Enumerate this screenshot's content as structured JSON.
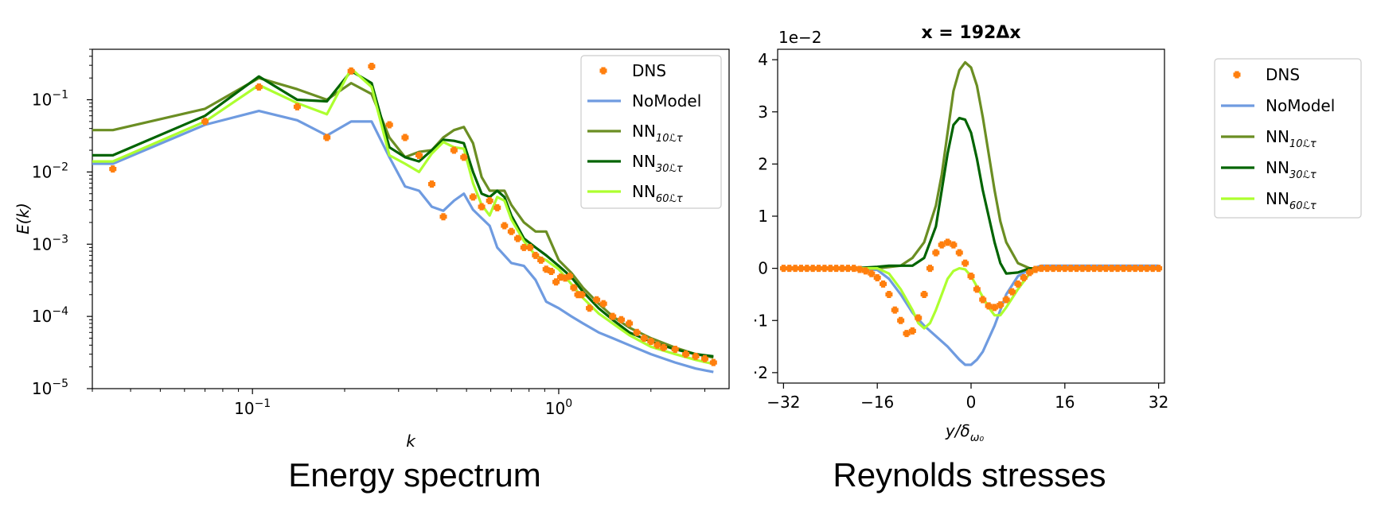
{
  "captions": {
    "left": "Energy spectrum",
    "right": "Reynolds stresses"
  },
  "legend_labels": [
    {
      "main": "DNS",
      "sub": ""
    },
    {
      "main": "NoModel",
      "sub": ""
    },
    {
      "main": "NN",
      "sub": "10ℒτ"
    },
    {
      "main": "NN",
      "sub": "30ℒτ"
    },
    {
      "main": "NN",
      "sub": "60ℒτ"
    }
  ],
  "colors": {
    "DNS": "#ff7f0e",
    "NoModel": "#6f9be0",
    "NN10": "#6b8e23",
    "NN30": "#006400",
    "NN60": "#adff2f"
  },
  "chart_data": [
    {
      "type": "line",
      "title": "",
      "xlabel": "k",
      "ylabel": "E(k)",
      "xscale": "log",
      "yscale": "log",
      "xlim": [
        0.03,
        3.6
      ],
      "ylim": [
        1e-05,
        0.5
      ],
      "xticks": [
        {
          "value": 0.1,
          "base": "10",
          "exp": "−1"
        },
        {
          "value": 1,
          "base": "10",
          "exp": "0"
        }
      ],
      "yticks": [
        {
          "value": 0.1,
          "base": "10",
          "exp": "−1"
        },
        {
          "value": 0.01,
          "base": "10",
          "exp": "−2"
        },
        {
          "value": 0.001,
          "base": "10",
          "exp": "−3"
        },
        {
          "value": 0.0001,
          "base": "10",
          "exp": "−4"
        },
        {
          "value": 1e-05,
          "base": "10",
          "exp": "−5"
        }
      ],
      "legend": "top-right",
      "series": [
        {
          "key": "DNS",
          "name": "DNS",
          "kind": "marker",
          "x": [
            0.035,
            0.07,
            0.105,
            0.14,
            0.175,
            0.21,
            0.245,
            0.28,
            0.315,
            0.35,
            0.385,
            0.42,
            0.455,
            0.49,
            0.525,
            0.56,
            0.595,
            0.63,
            0.665,
            0.7,
            0.735,
            0.77,
            0.805,
            0.84,
            0.875,
            0.91,
            0.945,
            0.98,
            1.015,
            1.05,
            1.085,
            1.12,
            1.155,
            1.19,
            1.26,
            1.33,
            1.4,
            1.5,
            1.6,
            1.7,
            1.8,
            1.9,
            2.0,
            2.1,
            2.2,
            2.4,
            2.6,
            2.8,
            3.0,
            3.2
          ],
          "y": [
            0.011,
            0.05,
            0.15,
            0.08,
            0.03,
            0.25,
            0.29,
            0.045,
            0.03,
            0.017,
            0.0068,
            0.0024,
            0.02,
            0.016,
            0.0045,
            0.0033,
            0.004,
            0.0032,
            0.0018,
            0.0015,
            0.0012,
            0.0009,
            0.0009,
            0.0007,
            0.0006,
            0.00045,
            0.00042,
            0.0003,
            0.00035,
            0.00034,
            0.00036,
            0.00025,
            0.0002,
            0.0002,
            0.00013,
            0.00017,
            0.00015,
            0.0001,
            9e-05,
            8e-05,
            6e-05,
            5e-05,
            4.5e-05,
            4e-05,
            3.7e-05,
            3.5e-05,
            3e-05,
            2.8e-05,
            2.6e-05,
            2.3e-05
          ]
        },
        {
          "key": "NoModel",
          "name": "NoModel",
          "kind": "line",
          "x": [
            0.03,
            0.035,
            0.07,
            0.105,
            0.14,
            0.175,
            0.21,
            0.245,
            0.28,
            0.315,
            0.35,
            0.385,
            0.42,
            0.455,
            0.49,
            0.525,
            0.56,
            0.595,
            0.63,
            0.7,
            0.77,
            0.84,
            0.91,
            1.0,
            1.1,
            1.2,
            1.35,
            1.5,
            1.7,
            2.0,
            2.4,
            2.8,
            3.2
          ],
          "y": [
            0.013,
            0.013,
            0.045,
            0.07,
            0.052,
            0.032,
            0.05,
            0.05,
            0.016,
            0.0063,
            0.0055,
            0.0033,
            0.0029,
            0.004,
            0.005,
            0.003,
            0.0023,
            0.0018,
            0.0009,
            0.00055,
            0.0005,
            0.00032,
            0.00016,
            0.00013,
            0.0001,
            8e-05,
            6e-05,
            5e-05,
            4e-05,
            3e-05,
            2.3e-05,
            1.9e-05,
            1.7e-05
          ]
        },
        {
          "key": "NN10",
          "name": "NN10",
          "kind": "line",
          "x": [
            0.03,
            0.035,
            0.07,
            0.105,
            0.14,
            0.175,
            0.21,
            0.245,
            0.28,
            0.315,
            0.35,
            0.385,
            0.42,
            0.455,
            0.49,
            0.525,
            0.56,
            0.595,
            0.63,
            0.665,
            0.7,
            0.77,
            0.84,
            0.91,
            1.0,
            1.1,
            1.2,
            1.35,
            1.5,
            1.7,
            2.0,
            2.4,
            2.8,
            3.2
          ],
          "y": [
            0.038,
            0.038,
            0.075,
            0.2,
            0.14,
            0.1,
            0.17,
            0.12,
            0.03,
            0.016,
            0.019,
            0.02,
            0.03,
            0.038,
            0.042,
            0.025,
            0.0085,
            0.0055,
            0.0055,
            0.0055,
            0.0035,
            0.002,
            0.0015,
            0.0015,
            0.0006,
            0.0004,
            0.00025,
            0.00015,
            0.0001,
            7e-05,
            5e-05,
            3.7e-05,
            3e-05,
            2.7e-05
          ]
        },
        {
          "key": "NN30",
          "name": "NN30",
          "kind": "line",
          "x": [
            0.03,
            0.035,
            0.07,
            0.105,
            0.14,
            0.175,
            0.21,
            0.245,
            0.28,
            0.315,
            0.35,
            0.385,
            0.42,
            0.455,
            0.49,
            0.525,
            0.56,
            0.595,
            0.63,
            0.665,
            0.7,
            0.77,
            0.84,
            0.91,
            1.0,
            1.1,
            1.2,
            1.35,
            1.5,
            1.7,
            2.0,
            2.4,
            2.8,
            3.2
          ],
          "y": [
            0.017,
            0.017,
            0.06,
            0.21,
            0.1,
            0.095,
            0.25,
            0.17,
            0.022,
            0.016,
            0.014,
            0.02,
            0.028,
            0.027,
            0.025,
            0.01,
            0.005,
            0.0045,
            0.0055,
            0.0045,
            0.0025,
            0.0012,
            0.0009,
            0.0007,
            0.0005,
            0.00035,
            0.00022,
            0.00013,
            9e-05,
            6e-05,
            4.5e-05,
            3.5e-05,
            3e-05,
            2.8e-05
          ]
        },
        {
          "key": "NN60",
          "name": "NN60",
          "kind": "line",
          "x": [
            0.03,
            0.035,
            0.07,
            0.105,
            0.14,
            0.175,
            0.21,
            0.245,
            0.28,
            0.315,
            0.35,
            0.385,
            0.42,
            0.455,
            0.49,
            0.525,
            0.56,
            0.595,
            0.63,
            0.665,
            0.7,
            0.77,
            0.84,
            0.91,
            1.0,
            1.1,
            1.2,
            1.35,
            1.5,
            1.7,
            2.0,
            2.4,
            2.8,
            3.2
          ],
          "y": [
            0.014,
            0.014,
            0.05,
            0.16,
            0.09,
            0.063,
            0.27,
            0.15,
            0.017,
            0.013,
            0.01,
            0.018,
            0.026,
            0.022,
            0.021,
            0.007,
            0.0035,
            0.0025,
            0.0045,
            0.004,
            0.0022,
            0.0011,
            0.0007,
            0.0006,
            0.00045,
            0.00028,
            0.00018,
            0.00011,
            8e-05,
            5.5e-05,
            3.8e-05,
            3e-05,
            2.5e-05,
            2.2e-05
          ]
        }
      ]
    },
    {
      "type": "line",
      "title": "x = 192Δx",
      "xlabel": "y/δ",
      "xlabel_sub": "ω₀",
      "ylabel": "",
      "scale_note": "1e−2",
      "xlim": [
        -33,
        33
      ],
      "ylim": [
        -2.2,
        4.2
      ],
      "xticks": [
        {
          "value": -32,
          "label": "−32"
        },
        {
          "value": -16,
          "label": "−16"
        },
        {
          "value": 0,
          "label": "0"
        },
        {
          "value": 16,
          "label": "16"
        },
        {
          "value": 32,
          "label": "32"
        }
      ],
      "yticks": [
        {
          "value": 4,
          "label": "4"
        },
        {
          "value": 3,
          "label": "3"
        },
        {
          "value": 2,
          "label": "2"
        },
        {
          "value": 1,
          "label": "1"
        },
        {
          "value": 0,
          "label": "0"
        },
        {
          "value": -1,
          "label": "·1"
        },
        {
          "value": -2,
          "label": "·2"
        }
      ],
      "legend": "outside-right",
      "series": [
        {
          "key": "DNS",
          "name": "DNS",
          "kind": "marker",
          "x": [
            -32,
            -31,
            -30,
            -29,
            -28,
            -27,
            -26,
            -25,
            -24,
            -23,
            -22,
            -21,
            -20,
            -19,
            -18,
            -17,
            -16,
            -15,
            -14,
            -13,
            -12,
            -11,
            -10,
            -9,
            -8,
            -7,
            -6,
            -5,
            -4,
            -3,
            -2,
            -1,
            0,
            1,
            2,
            3,
            4,
            5,
            6,
            7,
            8,
            9,
            10,
            11,
            12,
            13,
            14,
            15,
            16,
            17,
            18,
            19,
            20,
            21,
            22,
            23,
            24,
            25,
            26,
            27,
            28,
            29,
            30,
            31,
            32
          ],
          "y": [
            0,
            0,
            0,
            0,
            0,
            0,
            0,
            0,
            0,
            0,
            0,
            0,
            0,
            -0.02,
            -0.05,
            -0.1,
            -0.18,
            -0.3,
            -0.5,
            -0.8,
            -1.0,
            -1.25,
            -1.2,
            -0.95,
            -0.5,
            0.0,
            0.3,
            0.45,
            0.5,
            0.45,
            0.3,
            0.1,
            -0.15,
            -0.4,
            -0.6,
            -0.72,
            -0.75,
            -0.7,
            -0.6,
            -0.45,
            -0.3,
            -0.18,
            -0.08,
            -0.02,
            0,
            0,
            0,
            0,
            0,
            0,
            0,
            0,
            0,
            0,
            0,
            0,
            0,
            0,
            0,
            0,
            0,
            0,
            0,
            0,
            0
          ]
        },
        {
          "key": "NoModel",
          "name": "NoModel",
          "kind": "line",
          "x": [
            -32,
            -20,
            -16,
            -14,
            -12,
            -10,
            -8,
            -6,
            -4,
            -2,
            -1,
            0,
            1,
            2,
            4,
            6,
            8,
            10,
            12,
            32
          ],
          "y": [
            0,
            0,
            -0.03,
            -0.2,
            -0.5,
            -0.85,
            -1.1,
            -1.3,
            -1.5,
            -1.75,
            -1.85,
            -1.85,
            -1.75,
            -1.6,
            -1.1,
            -0.5,
            -0.15,
            -0.02,
            0.05,
            0.05
          ]
        },
        {
          "key": "NN10",
          "name": "NN10",
          "kind": "line",
          "x": [
            -32,
            -16,
            -12,
            -10,
            -8,
            -6,
            -5,
            -4,
            -3,
            -2,
            -1,
            0,
            1,
            2,
            3,
            4,
            5,
            6,
            8,
            10,
            12,
            14,
            32
          ],
          "y": [
            0,
            0,
            0.05,
            0.2,
            0.5,
            1.2,
            1.8,
            2.6,
            3.4,
            3.8,
            3.95,
            3.85,
            3.5,
            2.9,
            2.2,
            1.5,
            0.9,
            0.5,
            0.1,
            0.0,
            0.0,
            0.0,
            0.0
          ]
        },
        {
          "key": "NN30",
          "name": "NN30",
          "kind": "line",
          "x": [
            -32,
            -20,
            -16,
            -14,
            -12,
            -10,
            -8,
            -6,
            -5,
            -4,
            -3,
            -2,
            -1,
            0,
            1,
            2,
            3,
            4,
            5,
            6,
            8,
            10,
            12,
            14,
            32
          ],
          "y": [
            0,
            0,
            0.03,
            0.05,
            0.05,
            0.05,
            0.2,
            0.8,
            1.5,
            2.2,
            2.75,
            2.88,
            2.85,
            2.6,
            2.1,
            1.5,
            1.0,
            0.5,
            0.1,
            -0.1,
            -0.08,
            0.0,
            0.0,
            0.0,
            0.0
          ]
        },
        {
          "key": "NN60",
          "name": "NN60",
          "kind": "line",
          "x": [
            -32,
            -16,
            -14,
            -12,
            -10,
            -9,
            -8,
            -7,
            -6,
            -5,
            -4,
            -3,
            -2,
            -1,
            0,
            1,
            2,
            3,
            4,
            5,
            6,
            8,
            10,
            12,
            14,
            32
          ],
          "y": [
            0,
            0,
            -0.1,
            -0.4,
            -0.8,
            -1.05,
            -1.15,
            -1.05,
            -0.8,
            -0.5,
            -0.2,
            -0.05,
            0.0,
            -0.02,
            -0.15,
            -0.35,
            -0.55,
            -0.75,
            -0.9,
            -0.9,
            -0.75,
            -0.4,
            -0.1,
            0.0,
            0.0,
            0.0
          ]
        }
      ]
    }
  ]
}
